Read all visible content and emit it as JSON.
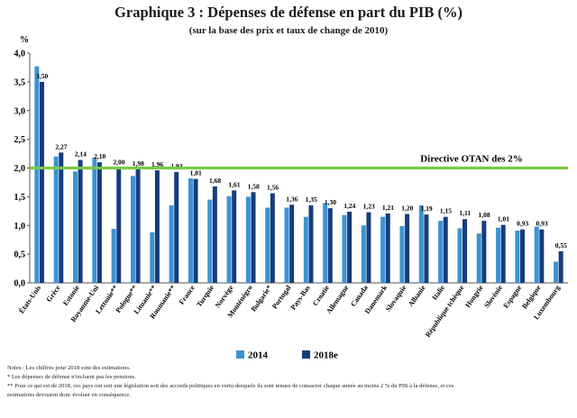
{
  "chart_data": {
    "type": "bar",
    "title": "Graphique 3 : Dépenses de défense en part du PIB (%)",
    "subtitle": "(sur la base des prix et taux de change de 2010)",
    "ylabel": "%",
    "xlabel": "",
    "ylim": [
      0,
      4
    ],
    "yticks": [
      "0,0",
      "0,5",
      "1,0",
      "1,5",
      "2,0",
      "2,5",
      "3,0",
      "3,5",
      "4,0"
    ],
    "grid": false,
    "legend_position": "bottom",
    "categories": [
      "États-Unis",
      "Grèce",
      "Estonie",
      "Royaume-Uni",
      "Lettonie**",
      "Pologne**",
      "Lituanie**",
      "Roumanie**",
      "France",
      "Turquie",
      "Norvège",
      "Monténégro",
      "Bulgarie*",
      "Portugal",
      "Pays-Bas",
      "Croatie",
      "Allemagne",
      "Canada",
      "Danemark",
      "Slovaquie",
      "Albanie",
      "Italie",
      "République tchèque",
      "Hongrie",
      "Slovénie",
      "Espagne",
      "Belgique",
      "Luxembourg"
    ],
    "series": [
      {
        "name": "2014",
        "color": "#3c93d3",
        "values": [
          3.77,
          2.2,
          1.94,
          2.18,
          0.94,
          1.86,
          0.88,
          1.35,
          1.82,
          1.45,
          1.51,
          1.5,
          1.31,
          1.31,
          1.15,
          1.39,
          1.18,
          1.0,
          1.15,
          0.99,
          1.35,
          1.08,
          0.95,
          0.86,
          0.96,
          0.91,
          0.98,
          0.37
        ]
      },
      {
        "name": "2018e",
        "color": "#163c7c",
        "values": [
          3.5,
          2.27,
          2.14,
          2.1,
          2.0,
          1.98,
          1.96,
          1.93,
          1.81,
          1.68,
          1.61,
          1.58,
          1.56,
          1.36,
          1.35,
          1.3,
          1.24,
          1.23,
          1.21,
          1.2,
          1.19,
          1.15,
          1.11,
          1.08,
          1.01,
          0.93,
          0.93,
          0.55
        ]
      }
    ],
    "data_labels": [
      "3,50",
      "2,27",
      "2,14",
      "2,10",
      "2,00",
      "1,98",
      "1,96",
      "1,93",
      "1,81",
      "1,68",
      "1,61",
      "1,58",
      "1,56",
      "1,36",
      "1,35",
      "1,30",
      "1,24",
      "1,23",
      "1,21",
      "1,20",
      "1,19",
      "1,15",
      "1,11",
      "1,08",
      "1,01",
      "0,93",
      "0,93",
      "0,55"
    ],
    "reference_line": {
      "value": 2.0,
      "label": "Directive OTAN des 2%",
      "color": "#7ac943"
    },
    "notes": [
      "Notes : Les chiffres pour 2018 sont des estimations.",
      "* Les dépenses de défense n'incluent pas les pensions.",
      "** Pour ce qui est de 2018, ces pays ont soit une législation soit des accords politiques en vertu desquels ils sont tenues de consacrer chaque année au moins 2 % du PIB à la défense, et ces",
      "estimations devraient donc évoluer en conséquence."
    ]
  }
}
